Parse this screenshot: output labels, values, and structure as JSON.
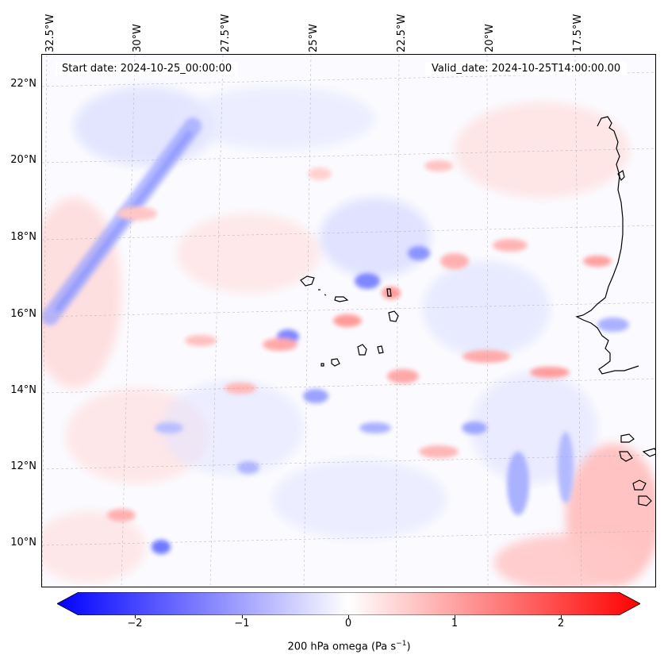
{
  "header": {
    "start_date": "Start date: 2024-10-25_00:00:00",
    "valid_date": "Valid_date: 2024-10-25T14:00:00.00"
  },
  "map": {
    "variable": "200 hPa omega",
    "units": "Pa s",
    "units_exponent": "−1",
    "lon_ticks": [
      "32.5°W",
      "30°W",
      "27.5°W",
      "25°W",
      "22.5°W",
      "20°W",
      "17.5°W"
    ],
    "lat_ticks": [
      "22°N",
      "20°N",
      "18°N",
      "16°N",
      "14°N",
      "12°N",
      "10°N"
    ],
    "gridlines": true,
    "colormap": "bwr",
    "colors": {
      "negative_max": "#0000ff",
      "zero": "#ffffff",
      "positive_max": "#ff0000",
      "coastline": "#000000"
    }
  },
  "colorbar": {
    "ticks": [
      "−2",
      "−1",
      "0",
      "1",
      "2"
    ],
    "range": [
      -2.75,
      2.75
    ],
    "extend": "both",
    "label_prefix": "200 hPa omega (Pa s",
    "label_suffix": ")",
    "label_exponent": "−1"
  }
}
